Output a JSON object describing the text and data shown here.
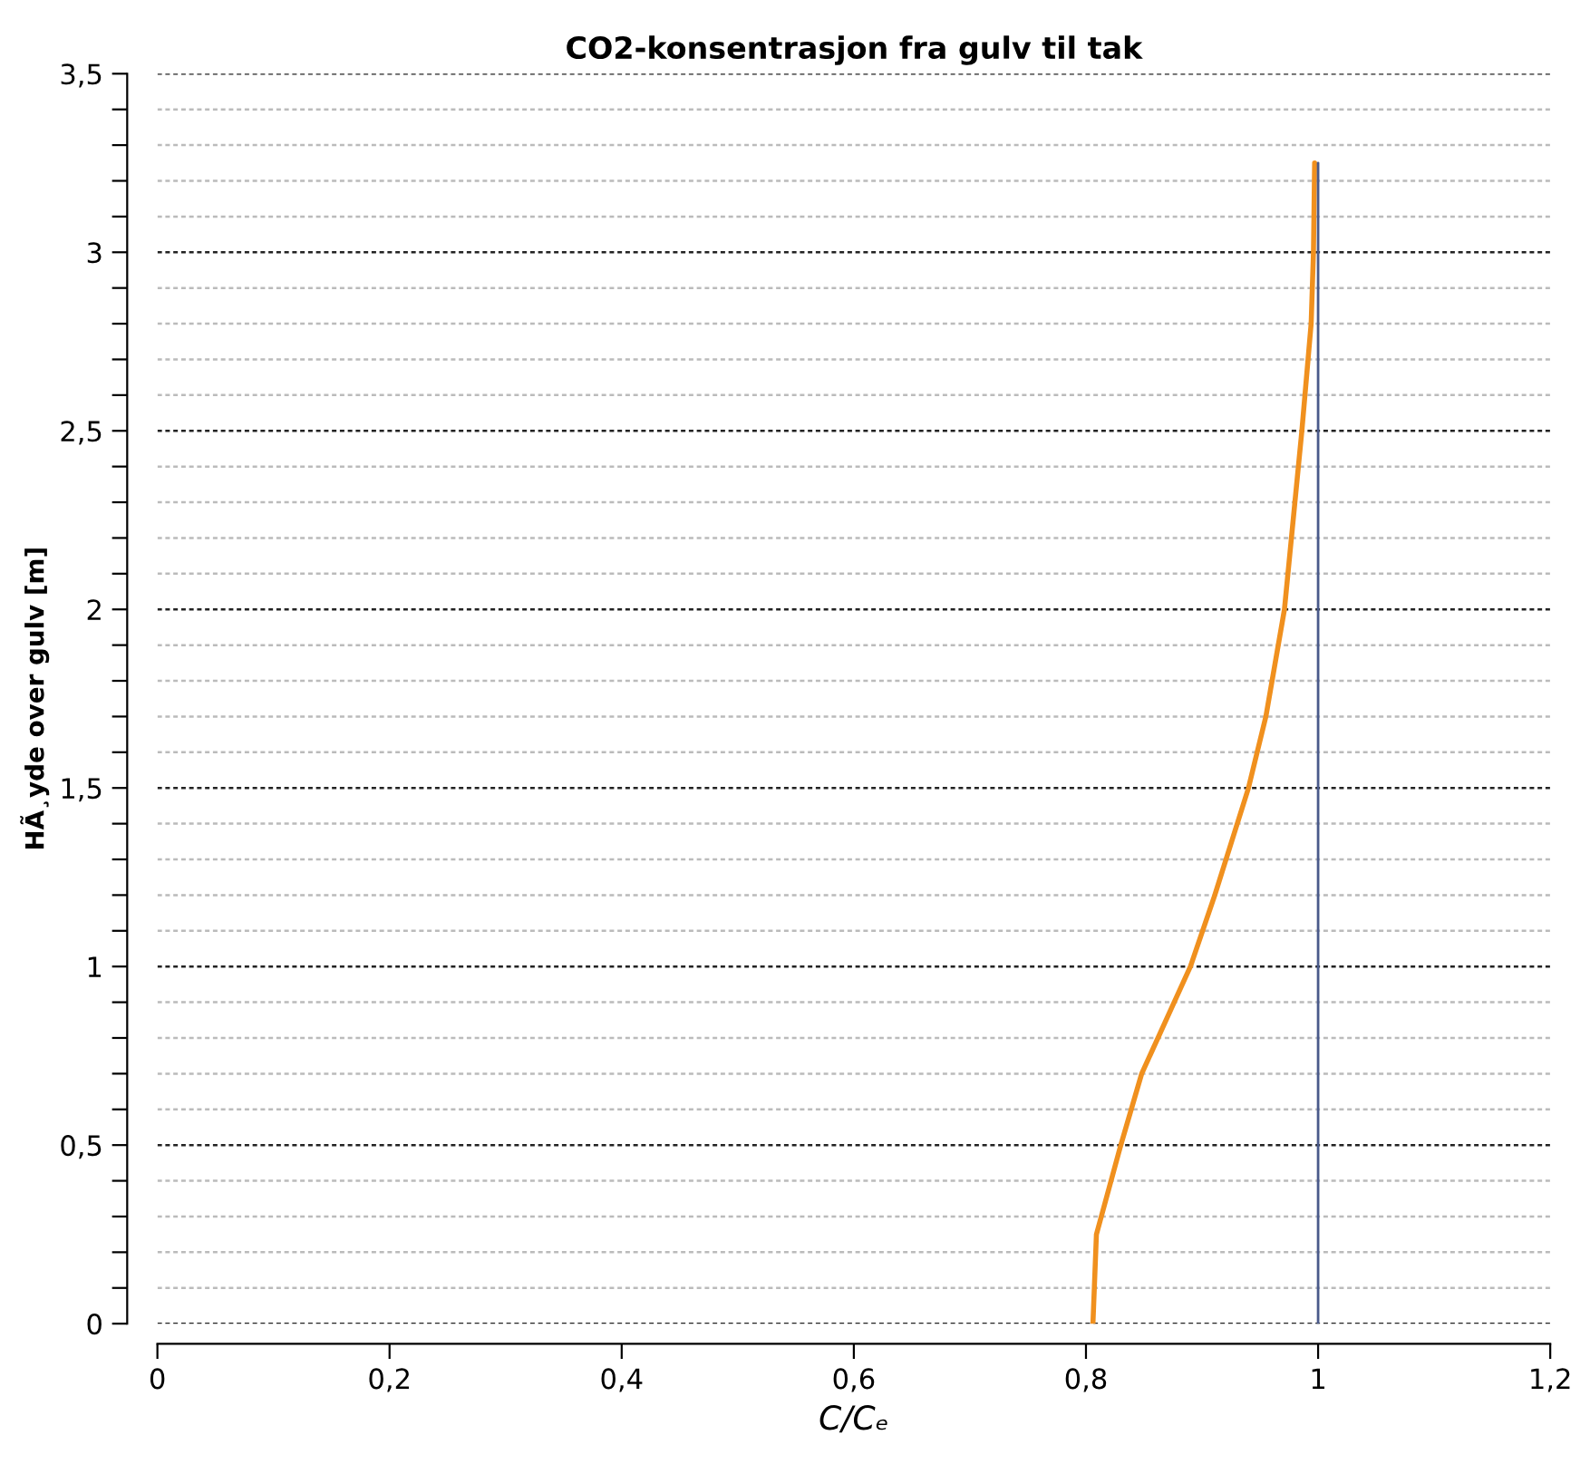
{
  "chart_data": {
    "type": "line",
    "title": "CO2-konsentrasjon fra gulv til tak",
    "xlabel": "C/Cₑ",
    "ylabel": "HÃ¸yde over gulv [m]",
    "series": [
      {
        "color": "#f0901e",
        "x": [
          0.806,
          0.809,
          0.83,
          0.848,
          0.89,
          0.911,
          0.94,
          0.955,
          0.971,
          0.986,
          0.994,
          0.996,
          0.997
        ],
        "values": [
          0,
          0.25,
          0.5,
          0.7,
          1.0,
          1.2,
          1.5,
          1.7,
          2.0,
          2.5,
          2.8,
          3.0,
          3.25
        ]
      },
      {
        "color": "#4a5a8a",
        "x": [
          1,
          1
        ],
        "values": [
          0,
          3.25
        ]
      }
    ],
    "xlim": [
      0,
      1.2
    ],
    "xticks": [
      0,
      {
        "value": 0.2,
        "label": "0,2"
      },
      {
        "value": 0.4,
        "label": "0,4"
      },
      {
        "value": 0.6,
        "label": "0,6"
      },
      {
        "value": 0.8,
        "label": "0,8"
      },
      1,
      {
        "value": 1.2,
        "label": "1,2"
      }
    ],
    "ylim": [
      0,
      3.5
    ],
    "yticks": [
      0,
      {
        "value": 0.1,
        "label": null
      },
      {
        "value": 0.2,
        "label": null
      },
      {
        "value": 0.3,
        "label": null
      },
      {
        "value": 0.4,
        "label": null
      },
      {
        "value": 0.5,
        "label": "0,5"
      },
      {
        "value": 0.6,
        "label": null
      },
      {
        "value": 0.7,
        "label": null
      },
      {
        "value": 0.8,
        "label": null
      },
      {
        "value": 0.9,
        "label": null
      },
      1,
      {
        "value": 1.1,
        "label": null
      },
      {
        "value": 1.2,
        "label": null
      },
      {
        "value": 1.3,
        "label": null
      },
      {
        "value": 1.4,
        "label": null
      },
      {
        "value": 1.5,
        "label": "1,5"
      },
      {
        "value": 1.6,
        "label": null
      },
      {
        "value": 1.7,
        "label": null
      },
      {
        "value": 1.8,
        "label": null
      },
      {
        "value": 1.9,
        "label": null
      },
      2,
      {
        "value": 2.1,
        "label": null
      },
      {
        "value": 2.2,
        "label": null
      },
      {
        "value": 2.3,
        "label": null
      },
      {
        "value": 2.4,
        "label": null
      },
      {
        "value": 2.5,
        "label": "2,5"
      },
      {
        "value": 2.6,
        "label": null
      },
      {
        "value": 2.7,
        "label": null
      },
      {
        "value": 2.8,
        "label": null
      },
      {
        "value": 2.9,
        "label": null
      },
      3,
      {
        "value": 3.1,
        "label": null
      },
      {
        "value": 3.2,
        "label": null
      },
      {
        "value": 3.3,
        "label": null
      },
      {
        "value": 3.4,
        "label": null
      },
      {
        "value": 3.5,
        "label": "3,5"
      }
    ],
    "grid": "y",
    "marker": "none",
    "line_style": "solid"
  }
}
